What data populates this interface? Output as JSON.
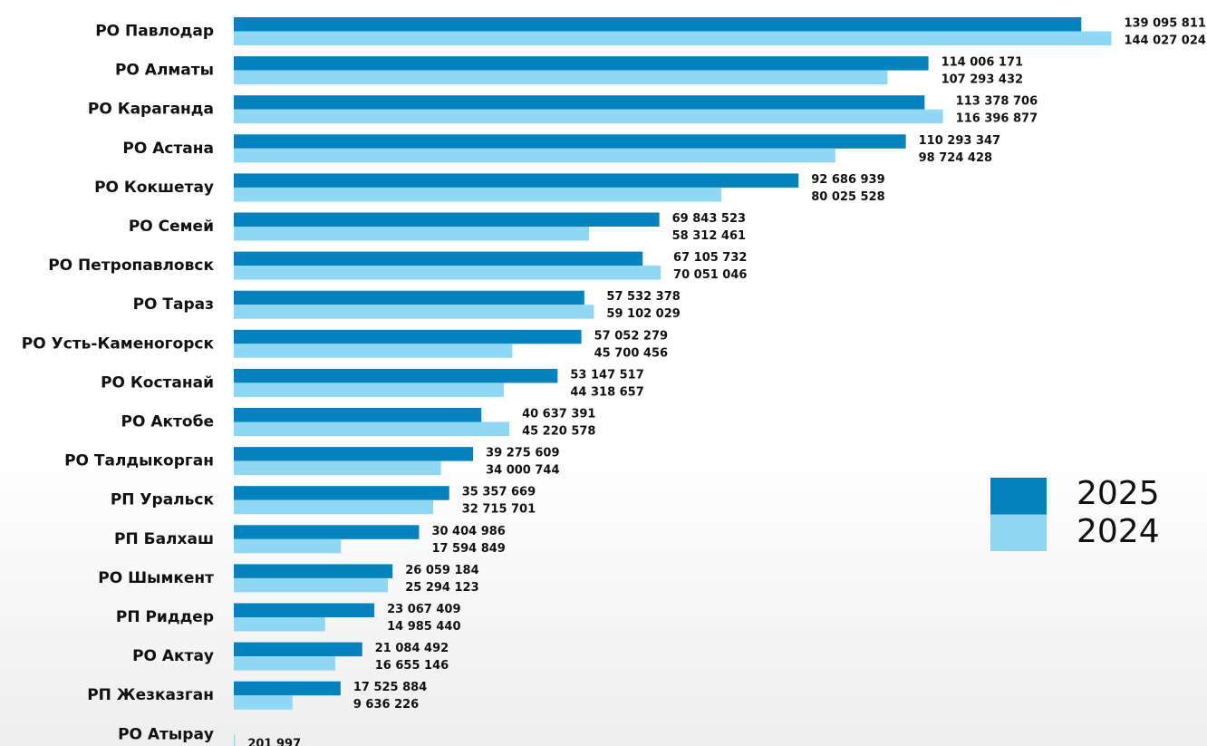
{
  "chart_data": {
    "type": "bar",
    "orientation": "horizontal",
    "categories": [
      "РО Павлодар",
      "РО Алматы",
      "РО Караганда",
      "РО Астана",
      "РО Кокшетау",
      "РО Семей",
      "РО Петропавловск",
      "РО Тараз",
      "РО Усть-Каменогорск",
      "РО Костанай",
      "РО Актобе",
      "РО Талдыкорган",
      "РП Уральск",
      "РП Балхаш",
      "РО Шымкент",
      "РП Риддер",
      "РО Актау",
      "РП Жезказган",
      "РО Атырау"
    ],
    "series": [
      {
        "name": "2025",
        "color": "#0382bd",
        "values": [
          139095811,
          114006171,
          113378706,
          110293347,
          92686939,
          69843523,
          67105732,
          57532378,
          57052279,
          53147517,
          40637391,
          39275609,
          35357669,
          30404986,
          26059184,
          23067409,
          21084492,
          17525884,
          null
        ],
        "value_labels": [
          "139 095 811",
          "114 006 171",
          "113 378 706",
          "110 293 347",
          "92 686 939",
          "69 843 523",
          "67 105 732",
          "57 532 378",
          "57 052 279",
          "53 147 517",
          "40 637 391",
          "39 275 609",
          "35 357 669",
          "30 404 986",
          "26 059 184",
          "23 067 409",
          "21 084 492",
          "17 525 884",
          null
        ]
      },
      {
        "name": "2024",
        "color": "#8ed8f6",
        "values": [
          144027024,
          107293432,
          116396877,
          98724428,
          80025528,
          58312461,
          70051046,
          59102029,
          45700456,
          44318657,
          45220578,
          34000744,
          32715701,
          17594849,
          25294123,
          14985440,
          16655146,
          9636226,
          201997
        ],
        "value_labels": [
          "144 027 024",
          "107 293 432",
          "116 396 877",
          "98 724 428",
          "80 025 528",
          "58 312 461",
          "70 051 046",
          "59 102 029",
          "45 700 456",
          "44 318 657",
          "45 220 578",
          "34 000 744",
          "32 715 701",
          "17 594 849",
          "25 294 123",
          "14 985 440",
          "16 655 146",
          "9 636 226",
          "201 997"
        ]
      }
    ],
    "xlim": [
      0,
      145000000
    ],
    "legend": "right"
  }
}
